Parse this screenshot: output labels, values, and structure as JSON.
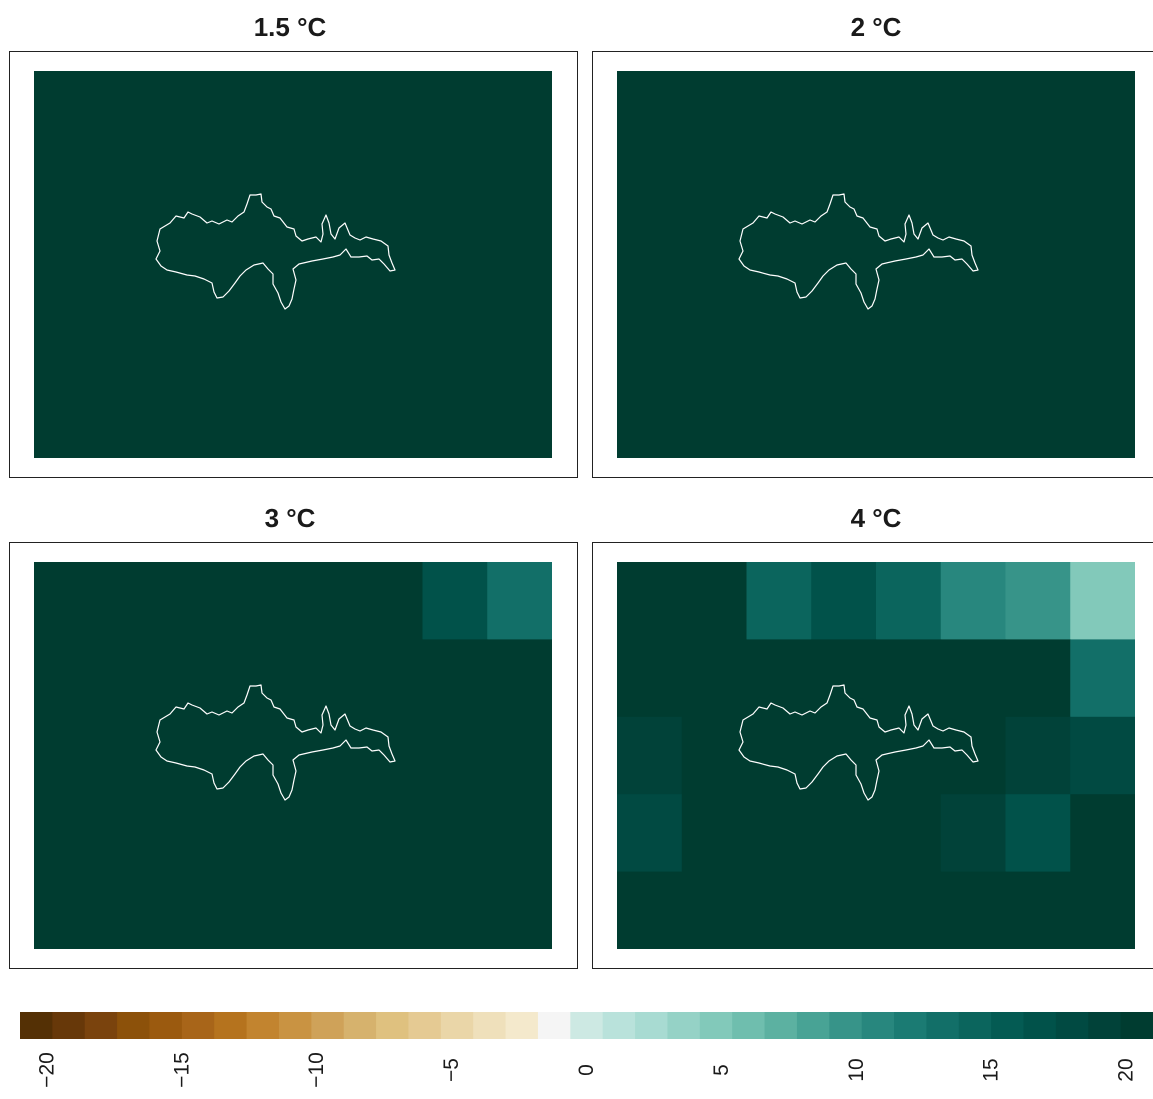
{
  "chart_data": {
    "type": "heatmap",
    "colorbar": {
      "min": -21,
      "max": 21,
      "step": 1,
      "ticks": [
        -20,
        -15,
        -10,
        -5,
        0,
        5,
        10,
        15,
        20
      ],
      "tick_labels": [
        "−20",
        "−15",
        "−10",
        "−5",
        "0",
        "5",
        "10",
        "15",
        "20"
      ],
      "colors": [
        "#543005",
        "#673809",
        "#7a430d",
        "#8c510a",
        "#9b5a0f",
        "#a86519",
        "#b5731e",
        "#c2842f",
        "#c99342",
        "#cfa259",
        "#d6b26d",
        "#dfc17f",
        "#e5ca93",
        "#ead6a8",
        "#efe0bb",
        "#f4e9cc",
        "#f5f5f5",
        "#cde9e3",
        "#b9e2db",
        "#a8dbd2",
        "#95d2c6",
        "#82c9ba",
        "#6fbeae",
        "#5cb1a1",
        "#48a395",
        "#379489",
        "#28877e",
        "#1b7b73",
        "#126f68",
        "#0b655d",
        "#045b53",
        "#01524a",
        "#014a42",
        "#014239",
        "#003c30"
      ]
    },
    "panels": [
      {
        "title": "1.5 °C",
        "grid": [
          [
            20,
            20,
            20,
            20,
            20,
            20,
            20,
            20
          ],
          [
            20,
            20,
            20,
            20,
            20,
            20,
            20,
            20
          ],
          [
            20,
            20,
            20,
            20,
            20,
            20,
            20,
            20
          ],
          [
            20,
            20,
            20,
            20,
            20,
            20,
            20,
            20
          ],
          [
            20,
            20,
            20,
            20,
            20,
            20,
            20,
            20
          ]
        ]
      },
      {
        "title": "2 °C",
        "grid": [
          [
            20,
            20,
            20,
            20,
            20,
            20,
            20,
            20
          ],
          [
            20,
            20,
            20,
            20,
            20,
            20,
            20,
            20
          ],
          [
            20,
            20,
            20,
            20,
            20,
            20,
            20,
            20
          ],
          [
            20,
            20,
            20,
            20,
            20,
            20,
            20,
            20
          ],
          [
            20,
            20,
            20,
            20,
            20,
            20,
            20,
            20
          ]
        ]
      },
      {
        "title": "3 °C",
        "grid": [
          [
            20,
            20,
            20,
            20,
            20,
            20,
            17,
            13
          ],
          [
            20,
            20,
            20,
            20,
            20,
            20,
            20,
            20
          ],
          [
            20,
            20,
            20,
            20,
            20,
            20,
            20,
            20
          ],
          [
            20,
            20,
            20,
            20,
            20,
            20,
            20,
            20
          ],
          [
            20,
            20,
            20,
            20,
            20,
            20,
            20,
            20
          ]
        ]
      },
      {
        "title": "4 °C",
        "grid": [
          [
            20,
            20,
            14,
            17,
            14,
            11,
            10,
            5
          ],
          [
            20,
            20,
            20,
            20,
            20,
            20,
            20,
            13
          ],
          [
            19,
            20,
            20,
            20,
            20,
            20,
            19,
            18
          ],
          [
            18,
            20,
            20,
            20,
            20,
            19,
            17,
            20
          ],
          [
            20,
            20,
            20,
            20,
            20,
            20,
            20,
            20
          ]
        ]
      }
    ]
  }
}
